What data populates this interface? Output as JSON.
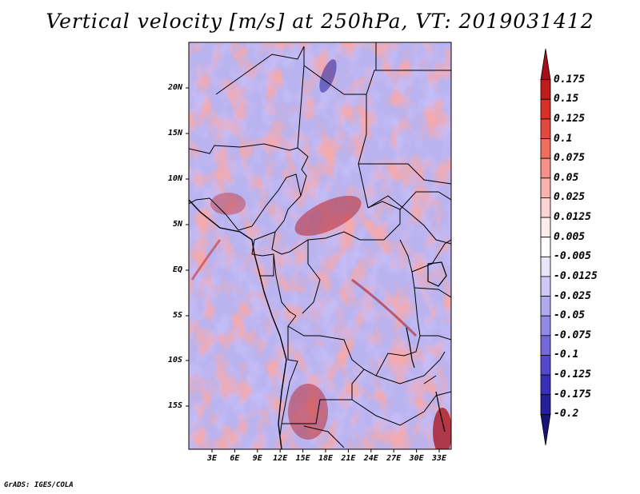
{
  "title": "Vertical velocity [m/s] at 250hPa, VT: 2019031412",
  "footer": "GrADS: IGES/COLA",
  "map": {
    "variable": "Vertical velocity",
    "units": "m/s",
    "level": "250hPa",
    "valid_time": "2019031412",
    "lat_labels": [
      "20N",
      "15N",
      "10N",
      "5N",
      "EQ",
      "5S",
      "10S",
      "15S"
    ],
    "lon_labels": [
      "3E",
      "6E",
      "9E",
      "12E",
      "15E",
      "18E",
      "21E",
      "24E",
      "27E",
      "30E",
      "33E"
    ]
  },
  "colorbar": {
    "labels": [
      "0.175",
      "0.15",
      "0.125",
      "0.1",
      "0.075",
      "0.05",
      "0.025",
      "0.0125",
      "0.005",
      "-0.005",
      "-0.0125",
      "-0.025",
      "-0.05",
      "-0.075",
      "-0.1",
      "-0.125",
      "-0.175",
      "-0.2"
    ],
    "colors": [
      "#a50f15",
      "#c01c1c",
      "#d73027",
      "#e34a3f",
      "#ef6e5e",
      "#f4918a",
      "#f8b3ad",
      "#fbd3d0",
      "#fdeceb",
      "#ffffff",
      "#e8e6fb",
      "#cfcaf5",
      "#b1a9ee",
      "#928ae6",
      "#7468dc",
      "#5548cc",
      "#3a2fb8",
      "#26209c",
      "#16137a"
    ]
  }
}
